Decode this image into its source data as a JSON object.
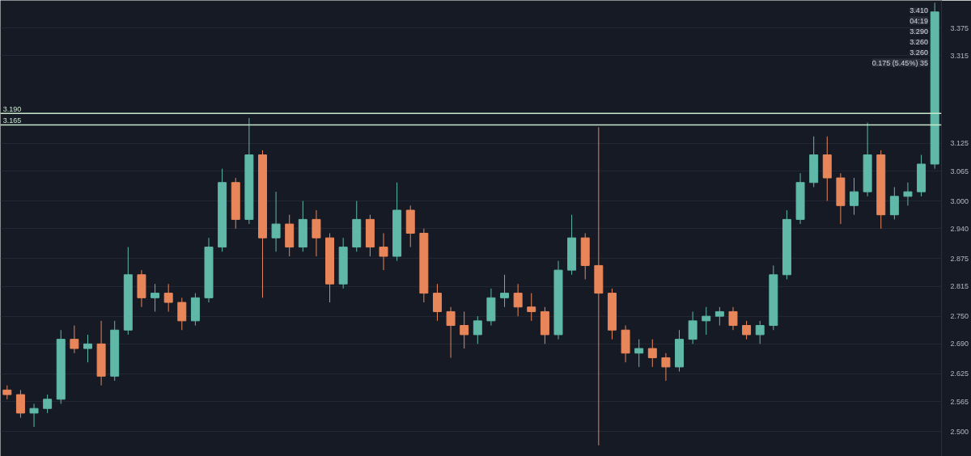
{
  "chart_data": {
    "type": "candlestick",
    "categories": [
      null,
      null,
      null,
      null,
      null,
      null,
      null,
      null,
      null,
      null,
      null,
      null,
      null,
      null,
      null,
      null,
      null,
      null,
      null,
      null,
      null,
      null,
      null,
      null,
      null,
      null,
      null,
      null,
      null,
      null,
      null,
      null,
      null,
      null,
      null,
      null,
      null,
      null,
      null,
      null,
      null,
      null,
      null,
      null,
      null,
      null,
      null,
      null,
      null,
      null,
      null,
      null,
      null,
      null,
      null,
      null,
      null,
      null,
      null,
      null,
      null,
      null,
      null,
      null,
      null,
      null,
      null,
      null,
      null,
      null
    ],
    "ohlc": [
      [
        2.59,
        2.6,
        2.57,
        2.58
      ],
      [
        2.58,
        2.59,
        2.53,
        2.54
      ],
      [
        2.54,
        2.56,
        2.51,
        2.55
      ],
      [
        2.55,
        2.58,
        2.54,
        2.57
      ],
      [
        2.57,
        2.72,
        2.56,
        2.7
      ],
      [
        2.7,
        2.73,
        2.67,
        2.68
      ],
      [
        2.68,
        2.71,
        2.65,
        2.69
      ],
      [
        2.69,
        2.74,
        2.6,
        2.62
      ],
      [
        2.62,
        2.74,
        2.61,
        2.72
      ],
      [
        2.72,
        2.9,
        2.71,
        2.84
      ],
      [
        2.84,
        2.85,
        2.77,
        2.79
      ],
      [
        2.79,
        2.82,
        2.76,
        2.8
      ],
      [
        2.8,
        2.82,
        2.76,
        2.78
      ],
      [
        2.78,
        2.79,
        2.72,
        2.74
      ],
      [
        2.74,
        2.8,
        2.73,
        2.79
      ],
      [
        2.79,
        2.92,
        2.78,
        2.9
      ],
      [
        2.9,
        3.07,
        2.89,
        3.04
      ],
      [
        3.04,
        3.05,
        2.94,
        2.96
      ],
      [
        2.96,
        3.18,
        2.95,
        3.1
      ],
      [
        3.1,
        3.11,
        2.79,
        2.92
      ],
      [
        2.92,
        3.02,
        2.89,
        2.95
      ],
      [
        2.95,
        2.97,
        2.88,
        2.9
      ],
      [
        2.9,
        3.0,
        2.89,
        2.96
      ],
      [
        2.96,
        2.98,
        2.88,
        2.92
      ],
      [
        2.92,
        2.93,
        2.78,
        2.82
      ],
      [
        2.82,
        2.92,
        2.81,
        2.9
      ],
      [
        2.9,
        3.0,
        2.89,
        2.96
      ],
      [
        2.96,
        2.97,
        2.88,
        2.9
      ],
      [
        2.9,
        2.93,
        2.85,
        2.88
      ],
      [
        2.88,
        3.04,
        2.87,
        2.98
      ],
      [
        2.98,
        2.99,
        2.9,
        2.93
      ],
      [
        2.93,
        2.94,
        2.78,
        2.8
      ],
      [
        2.8,
        2.82,
        2.74,
        2.76
      ],
      [
        2.76,
        2.77,
        2.66,
        2.73
      ],
      [
        2.73,
        2.76,
        2.68,
        2.71
      ],
      [
        2.71,
        2.75,
        2.69,
        2.74
      ],
      [
        2.74,
        2.81,
        2.73,
        2.79
      ],
      [
        2.79,
        2.84,
        2.77,
        2.8
      ],
      [
        2.8,
        2.82,
        2.75,
        2.77
      ],
      [
        2.77,
        2.8,
        2.74,
        2.76
      ],
      [
        2.76,
        2.77,
        2.69,
        2.71
      ],
      [
        2.71,
        2.87,
        2.7,
        2.85
      ],
      [
        2.85,
        2.97,
        2.84,
        2.92
      ],
      [
        2.92,
        2.93,
        2.83,
        2.86
      ],
      [
        2.86,
        3.16,
        2.47,
        2.8
      ],
      [
        2.8,
        2.81,
        2.7,
        2.72
      ],
      [
        2.72,
        2.73,
        2.65,
        2.67
      ],
      [
        2.67,
        2.7,
        2.64,
        2.68
      ],
      [
        2.68,
        2.7,
        2.64,
        2.66
      ],
      [
        2.66,
        2.67,
        2.61,
        2.64
      ],
      [
        2.64,
        2.72,
        2.63,
        2.7
      ],
      [
        2.7,
        2.76,
        2.69,
        2.74
      ],
      [
        2.74,
        2.77,
        2.71,
        2.75
      ],
      [
        2.75,
        2.77,
        2.73,
        2.76
      ],
      [
        2.76,
        2.77,
        2.72,
        2.73
      ],
      [
        2.73,
        2.74,
        2.7,
        2.71
      ],
      [
        2.71,
        2.74,
        2.69,
        2.73
      ],
      [
        2.73,
        2.86,
        2.72,
        2.84
      ],
      [
        2.84,
        2.98,
        2.83,
        2.96
      ],
      [
        2.96,
        3.06,
        2.95,
        3.04
      ],
      [
        3.04,
        3.14,
        3.03,
        3.1
      ],
      [
        3.1,
        3.14,
        3.0,
        3.05
      ],
      [
        3.05,
        3.06,
        2.95,
        2.99
      ],
      [
        2.99,
        3.05,
        2.97,
        3.02
      ],
      [
        3.02,
        3.17,
        3.01,
        3.1
      ],
      [
        3.1,
        3.11,
        2.94,
        2.97
      ],
      [
        2.97,
        3.03,
        2.96,
        3.01
      ],
      [
        3.01,
        3.04,
        2.99,
        3.02
      ],
      [
        3.02,
        3.1,
        3.01,
        3.08
      ],
      [
        3.08,
        3.43,
        3.07,
        3.41
      ]
    ],
    "ylim": [
      2.446,
      3.435
    ],
    "yticks": [
      {
        "value": 2.5,
        "label": "2.500"
      },
      {
        "value": 2.565,
        "label": "2.565"
      },
      {
        "value": 2.625,
        "label": "2.625"
      },
      {
        "value": 2.69,
        "label": "2.690"
      },
      {
        "value": 2.75,
        "label": "2.750"
      },
      {
        "value": 2.815,
        "label": "2.815"
      },
      {
        "value": 2.875,
        "label": "2.875"
      },
      {
        "value": 2.94,
        "label": "2.940"
      },
      {
        "value": 3.0,
        "label": "3.000"
      },
      {
        "value": 3.065,
        "label": "3.065"
      },
      {
        "value": 3.125,
        "label": "3.125"
      },
      {
        "value": 3.315,
        "label": "3.315"
      },
      {
        "value": 3.375,
        "label": "3.375"
      }
    ],
    "tick_labels": "y",
    "grid": "y",
    "ref_lines": [
      {
        "axis": "y",
        "value": 3.19,
        "label": "3.190",
        "color": "#c8e6c9"
      },
      {
        "axis": "y",
        "value": 3.165,
        "label": "3.165",
        "color": "#c8e6c9"
      }
    ],
    "annotations": [
      "3.410",
      "04:19",
      "3.290",
      "3.260",
      "3.260",
      "0.175 (5.45%) 35"
    ]
  }
}
